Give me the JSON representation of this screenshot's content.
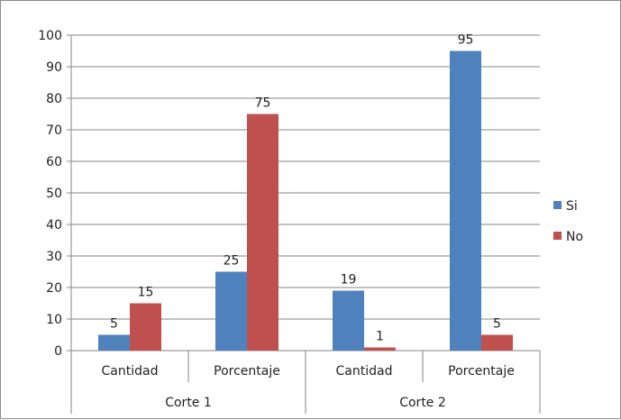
{
  "chart_data": {
    "type": "bar",
    "groups": [
      {
        "label": "Corte 1",
        "categories": [
          "Cantidad",
          "Porcentaje"
        ]
      },
      {
        "label": "Corte 2",
        "categories": [
          "Cantidad",
          "Porcentaje"
        ]
      }
    ],
    "categories": [
      "Cantidad",
      "Porcentaje",
      "Cantidad",
      "Porcentaje"
    ],
    "series": [
      {
        "name": "Si",
        "color": "#4F81BD",
        "values": [
          5,
          25,
          19,
          95
        ]
      },
      {
        "name": "No",
        "color": "#C0504D",
        "values": [
          15,
          75,
          1,
          5
        ]
      }
    ],
    "data_labels": true,
    "ylim": [
      0,
      100
    ],
    "yticks": [
      0,
      10,
      20,
      30,
      40,
      50,
      60,
      70,
      80,
      90,
      100
    ],
    "ytick_labels": [
      "0",
      "10",
      "20",
      "30",
      "40",
      "50",
      "60",
      "70",
      "80",
      "90",
      "100"
    ],
    "grid": true,
    "legend": "right",
    "title": "",
    "xlabel": "",
    "ylabel": ""
  }
}
